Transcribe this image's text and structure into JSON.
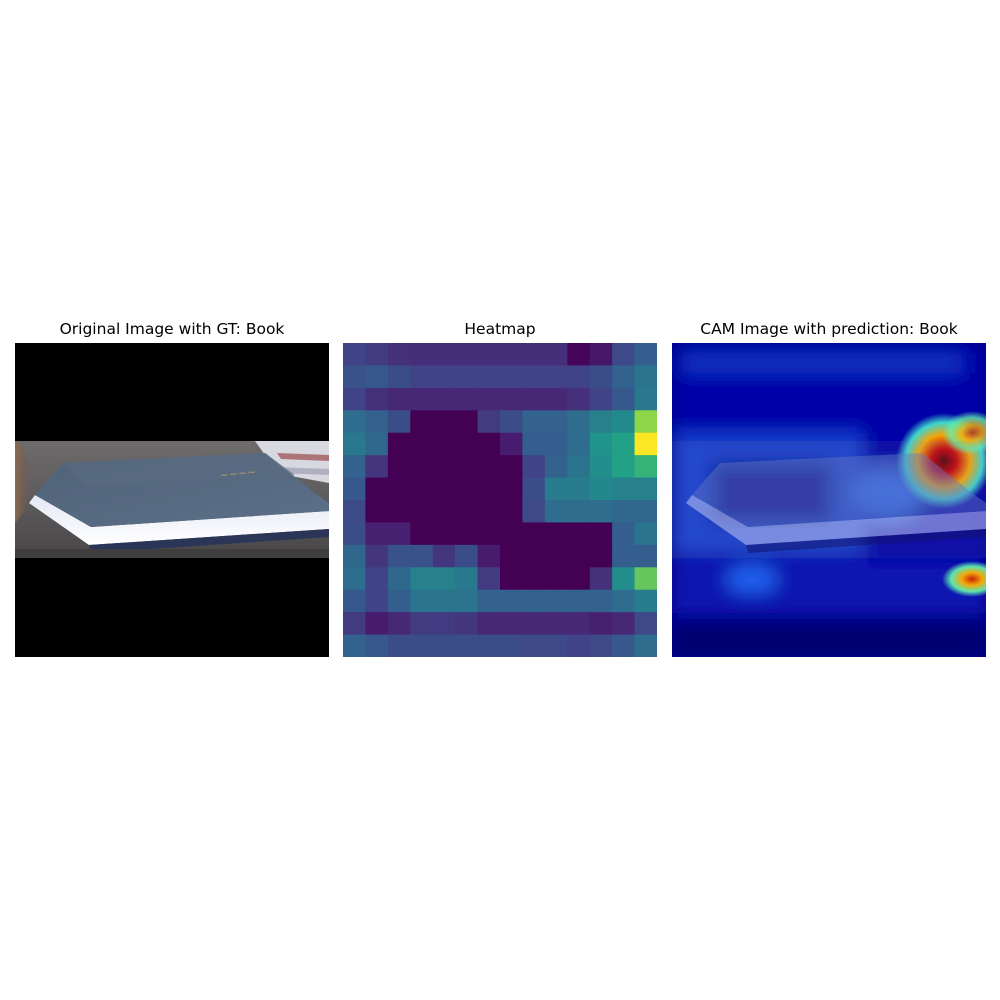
{
  "panels": [
    {
      "title": "Original Image with GT: Book"
    },
    {
      "title": "Heatmap"
    },
    {
      "title": "CAM Image with prediction: Book"
    }
  ],
  "heatmap": {
    "colormap": "viridis",
    "rows": 14,
    "cols": 14,
    "values": [
      [
        0.25,
        0.22,
        0.18,
        0.17,
        0.17,
        0.17,
        0.17,
        0.17,
        0.17,
        0.17,
        0.02,
        0.08,
        0.28,
        0.38
      ],
      [
        0.32,
        0.35,
        0.3,
        0.25,
        0.25,
        0.25,
        0.25,
        0.25,
        0.25,
        0.25,
        0.25,
        0.3,
        0.4,
        0.48
      ],
      [
        0.25,
        0.18,
        0.15,
        0.15,
        0.15,
        0.15,
        0.15,
        0.15,
        0.15,
        0.15,
        0.18,
        0.25,
        0.35,
        0.5
      ],
      [
        0.45,
        0.4,
        0.3,
        0.0,
        0.0,
        0.0,
        0.22,
        0.3,
        0.4,
        0.4,
        0.45,
        0.55,
        0.6,
        0.9
      ],
      [
        0.5,
        0.42,
        0.0,
        0.0,
        0.0,
        0.0,
        0.0,
        0.1,
        0.38,
        0.38,
        0.45,
        0.65,
        0.72,
        1.0
      ],
      [
        0.4,
        0.2,
        0.0,
        0.0,
        0.0,
        0.0,
        0.0,
        0.0,
        0.25,
        0.4,
        0.48,
        0.62,
        0.72,
        0.78
      ],
      [
        0.35,
        0.0,
        0.0,
        0.0,
        0.0,
        0.0,
        0.0,
        0.0,
        0.3,
        0.52,
        0.52,
        0.58,
        0.55,
        0.55
      ],
      [
        0.28,
        0.0,
        0.0,
        0.0,
        0.0,
        0.0,
        0.0,
        0.0,
        0.28,
        0.45,
        0.45,
        0.45,
        0.42,
        0.42
      ],
      [
        0.3,
        0.12,
        0.12,
        0.0,
        0.0,
        0.0,
        0.0,
        0.0,
        0.0,
        0.0,
        0.0,
        0.0,
        0.38,
        0.48
      ],
      [
        0.42,
        0.2,
        0.32,
        0.32,
        0.2,
        0.3,
        0.1,
        0.0,
        0.0,
        0.0,
        0.0,
        0.0,
        0.38,
        0.38
      ],
      [
        0.45,
        0.25,
        0.42,
        0.55,
        0.55,
        0.5,
        0.22,
        0.0,
        0.0,
        0.0,
        0.0,
        0.18,
        0.62,
        0.85
      ],
      [
        0.35,
        0.25,
        0.38,
        0.48,
        0.48,
        0.48,
        0.4,
        0.4,
        0.4,
        0.4,
        0.4,
        0.4,
        0.45,
        0.52
      ],
      [
        0.22,
        0.1,
        0.15,
        0.22,
        0.22,
        0.2,
        0.15,
        0.15,
        0.15,
        0.15,
        0.15,
        0.12,
        0.15,
        0.28
      ],
      [
        0.4,
        0.35,
        0.3,
        0.3,
        0.3,
        0.3,
        0.3,
        0.3,
        0.28,
        0.28,
        0.25,
        0.28,
        0.35,
        0.45
      ]
    ]
  }
}
